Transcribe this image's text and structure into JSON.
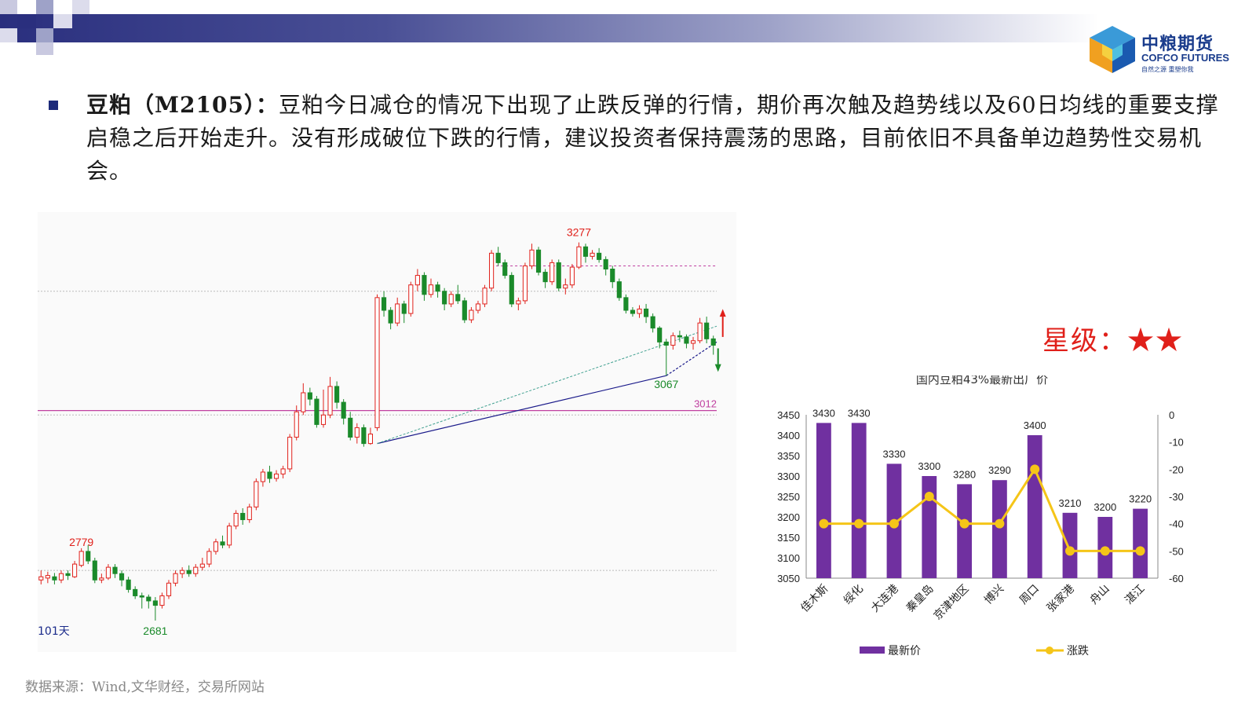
{
  "logo": {
    "name_cn": "中粮期货",
    "name_en": "COFCO FUTURES",
    "tagline": "自然之源 重塑你我"
  },
  "summary": {
    "lead": "豆粕（M2105）：",
    "body": "豆粕今日减仓的情况下出现了止跌反弹的行情，期价再次触及趋势线以及60日均线的重要支撑启稳之后开始走升。没有形成破位下跌的行情，建议投资者保持震荡的思路，目前依旧不具备单边趋势性交易机会。"
  },
  "rating": {
    "label": "星级：",
    "stars": "★★"
  },
  "source_note": "数据来源：Wind,文华财经，交易所网站",
  "colors": {
    "up": "#e0201a",
    "down": "#1a8a2a",
    "bar": "#7030a0",
    "line": "#f5c518",
    "hline": "#c040a0",
    "trend": "#1a1a8a",
    "trend2": "#40a090"
  },
  "chart_data": [
    {
      "type": "candlestick",
      "labels": {
        "high": "3277",
        "low": "2681",
        "early_high": "2779",
        "recent_low": "3067",
        "support": "3012",
        "period": "101天"
      },
      "price_range": [
        2650,
        3300
      ],
      "support_level": 3012,
      "resistance_level": 3200,
      "candles": [
        [
          2745,
          2750,
          2760,
          2738
        ],
        [
          2748,
          2752,
          2758,
          2740
        ],
        [
          2750,
          2745,
          2756,
          2738
        ],
        [
          2745,
          2755,
          2760,
          2740
        ],
        [
          2755,
          2752,
          2760,
          2745
        ],
        [
          2750,
          2770,
          2775,
          2748
        ],
        [
          2768,
          2790,
          2795,
          2765
        ],
        [
          2790,
          2775,
          2800,
          2770
        ],
        [
          2775,
          2745,
          2780,
          2740
        ],
        [
          2745,
          2748,
          2755,
          2740
        ],
        [
          2748,
          2765,
          2770,
          2745
        ],
        [
          2765,
          2755,
          2770,
          2748
        ],
        [
          2755,
          2745,
          2760,
          2735
        ],
        [
          2745,
          2730,
          2750,
          2725
        ],
        [
          2730,
          2720,
          2735,
          2715
        ],
        [
          2720,
          2718,
          2725,
          2700
        ],
        [
          2718,
          2712,
          2722,
          2700
        ],
        [
          2712,
          2705,
          2718,
          2681
        ],
        [
          2705,
          2720,
          2725,
          2700
        ],
        [
          2720,
          2740,
          2745,
          2715
        ],
        [
          2740,
          2755,
          2760,
          2735
        ],
        [
          2755,
          2760,
          2765,
          2748
        ],
        [
          2760,
          2755,
          2768,
          2750
        ],
        [
          2755,
          2765,
          2770,
          2750
        ],
        [
          2765,
          2770,
          2780,
          2760
        ],
        [
          2770,
          2790,
          2795,
          2765
        ],
        [
          2790,
          2805,
          2810,
          2785
        ],
        [
          2805,
          2800,
          2815,
          2795
        ],
        [
          2800,
          2830,
          2835,
          2795
        ],
        [
          2830,
          2850,
          2855,
          2825
        ],
        [
          2850,
          2840,
          2858,
          2832
        ],
        [
          2840,
          2860,
          2865,
          2835
        ],
        [
          2860,
          2900,
          2905,
          2855
        ],
        [
          2900,
          2915,
          2920,
          2892
        ],
        [
          2915,
          2905,
          2925,
          2898
        ],
        [
          2905,
          2912,
          2918,
          2900
        ],
        [
          2912,
          2920,
          2925,
          2905
        ],
        [
          2920,
          2970,
          2975,
          2915
        ],
        [
          2970,
          3010,
          3020,
          2965
        ],
        [
          3010,
          3040,
          3055,
          3005
        ],
        [
          3040,
          3030,
          3048,
          3020
        ],
        [
          3030,
          2990,
          3035,
          2985
        ],
        [
          2990,
          3005,
          3045,
          2985
        ],
        [
          3005,
          3050,
          3065,
          3000
        ],
        [
          3050,
          3025,
          3058,
          3015
        ],
        [
          3025,
          3000,
          3030,
          2990
        ],
        [
          3000,
          2970,
          3010,
          2965
        ],
        [
          2970,
          2985,
          2992,
          2960
        ],
        [
          2985,
          2960,
          2990,
          2955
        ],
        [
          2960,
          2975,
          2985,
          2958
        ],
        [
          2985,
          3190,
          3195,
          2980
        ],
        [
          3190,
          3170,
          3200,
          3160
        ],
        [
          3170,
          3150,
          3175,
          3140
        ],
        [
          3150,
          3180,
          3190,
          3145
        ],
        [
          3180,
          3165,
          3185,
          3150
        ],
        [
          3165,
          3210,
          3215,
          3160
        ],
        [
          3210,
          3225,
          3235,
          3200
        ],
        [
          3225,
          3195,
          3230,
          3185
        ],
        [
          3195,
          3210,
          3220,
          3190
        ],
        [
          3210,
          3200,
          3215,
          3190
        ],
        [
          3200,
          3180,
          3205,
          3170
        ],
        [
          3180,
          3195,
          3200,
          3175
        ],
        [
          3195,
          3185,
          3210,
          3180
        ],
        [
          3185,
          3155,
          3190,
          3150
        ],
        [
          3155,
          3170,
          3175,
          3150
        ],
        [
          3170,
          3180,
          3185,
          3165
        ],
        [
          3180,
          3205,
          3210,
          3175
        ],
        [
          3205,
          3260,
          3265,
          3200
        ],
        [
          3260,
          3245,
          3270,
          3240
        ],
        [
          3245,
          3225,
          3250,
          3220
        ],
        [
          3225,
          3180,
          3230,
          3175
        ],
        [
          3180,
          3185,
          3190,
          3170
        ],
        [
          3185,
          3240,
          3245,
          3180
        ],
        [
          3240,
          3265,
          3275,
          3235
        ],
        [
          3265,
          3230,
          3270,
          3225
        ],
        [
          3230,
          3215,
          3235,
          3205
        ],
        [
          3215,
          3245,
          3250,
          3210
        ],
        [
          3245,
          3205,
          3250,
          3200
        ],
        [
          3205,
          3210,
          3220,
          3195
        ],
        [
          3210,
          3238,
          3243,
          3205
        ],
        [
          3238,
          3270,
          3277,
          3235
        ],
        [
          3270,
          3255,
          3275,
          3245
        ],
        [
          3255,
          3260,
          3265,
          3250
        ],
        [
          3260,
          3250,
          3268,
          3245
        ],
        [
          3250,
          3235,
          3255,
          3225
        ],
        [
          3235,
          3215,
          3240,
          3205
        ],
        [
          3215,
          3190,
          3220,
          3185
        ],
        [
          3190,
          3170,
          3195,
          3165
        ],
        [
          3170,
          3165,
          3175,
          3160
        ],
        [
          3165,
          3172,
          3178,
          3158
        ],
        [
          3172,
          3160,
          3180,
          3150
        ],
        [
          3160,
          3142,
          3165,
          3135
        ],
        [
          3142,
          3120,
          3145,
          3110
        ],
        [
          3120,
          3115,
          3125,
          3067
        ],
        [
          3115,
          3130,
          3135,
          3108
        ],
        [
          3130,
          3128,
          3138,
          3120
        ],
        [
          3128,
          3118,
          3132,
          3110
        ],
        [
          3118,
          3122,
          3128,
          3108
        ],
        [
          3122,
          3150,
          3158,
          3118
        ],
        [
          3150,
          3125,
          3160,
          3118
        ],
        [
          3125,
          3115,
          3130,
          3100
        ]
      ]
    },
    {
      "type": "bar",
      "title": "国内豆粕43%最新出厂价",
      "categories": [
        "佳木斯",
        "绥化",
        "大连港",
        "秦皇岛",
        "京津地区",
        "博兴",
        "周口",
        "张家港",
        "舟山",
        "湛江"
      ],
      "series": [
        {
          "name": "最新价",
          "values": [
            3430,
            3430,
            3330,
            3300,
            3280,
            3290,
            3400,
            3210,
            3200,
            3220
          ],
          "axis": "left"
        },
        {
          "name": "涨跌",
          "values": [
            -40,
            -40,
            -40,
            -30,
            -40,
            -40,
            -20,
            -50,
            -50,
            -50
          ],
          "axis": "right"
        }
      ],
      "ylim_left": [
        3050,
        3450
      ],
      "ylim_right": [
        -60,
        0
      ],
      "yticks_left": [
        "3450",
        "3400",
        "3350",
        "3300",
        "3250",
        "3200",
        "3150",
        "3100",
        "3050"
      ],
      "yticks_right": [
        "0",
        "-10",
        "-20",
        "-30",
        "-40",
        "-50",
        "-60"
      ],
      "legend_position": "bottom"
    }
  ]
}
